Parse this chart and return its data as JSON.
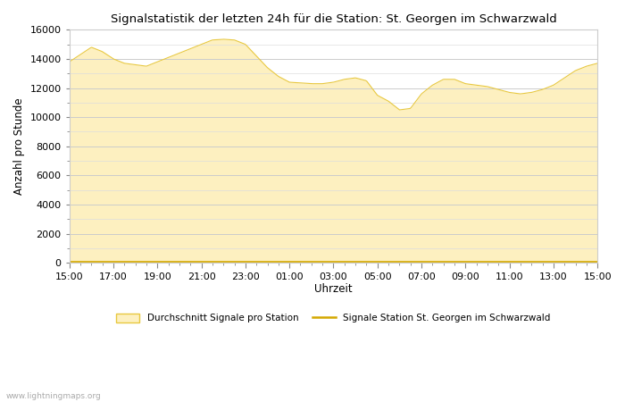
{
  "title": "Signalstatistik der letzten 24h für die Station: St. Georgen im Schwarzwald",
  "xlabel": "Uhrzeit",
  "ylabel": "Anzahl pro Stunde",
  "xtick_labels": [
    "15:00",
    "17:00",
    "19:00",
    "21:00",
    "23:00",
    "01:00",
    "03:00",
    "05:00",
    "07:00",
    "09:00",
    "11:00",
    "13:00",
    "15:00"
  ],
  "xtick_positions": [
    0,
    2,
    4,
    6,
    8,
    10,
    12,
    14,
    16,
    18,
    20,
    22,
    24
  ],
  "ylim": [
    0,
    16000
  ],
  "ytick_positions": [
    0,
    2000,
    4000,
    6000,
    8000,
    10000,
    12000,
    14000,
    16000
  ],
  "background_color": "#ffffff",
  "plot_bg_color": "#ffffff",
  "fill_color": "#fdf0c0",
  "line_color": "#e8c840",
  "station_line_color": "#d4a800",
  "watermark": "www.lightningmaps.org",
  "legend_avg": "Durchschnitt Signale pro Station",
  "legend_station": "Signale Station St. Georgen im Schwarzwald",
  "control_x": [
    0,
    0.5,
    1.0,
    1.5,
    2.0,
    2.5,
    3.0,
    3.5,
    4.0,
    4.5,
    5.0,
    5.5,
    6.0,
    6.5,
    7.0,
    7.5,
    8.0,
    8.5,
    9.0,
    9.5,
    10.0,
    10.5,
    11.0,
    11.5,
    12.0,
    12.5,
    13.0,
    13.5,
    14.0,
    14.5,
    15.0,
    15.5,
    16.0,
    16.5,
    17.0,
    17.5,
    18.0,
    18.5,
    19.0,
    19.5,
    20.0,
    20.5,
    21.0,
    21.5,
    22.0,
    22.5,
    23.0,
    23.5,
    24.0
  ],
  "control_y": [
    13800,
    14300,
    14800,
    14500,
    14000,
    13700,
    13600,
    13500,
    13800,
    14100,
    14400,
    14700,
    15000,
    15300,
    15350,
    15300,
    15000,
    14200,
    13400,
    12800,
    12400,
    12350,
    12300,
    12300,
    12400,
    12600,
    12700,
    12500,
    11500,
    11100,
    10500,
    10600,
    11600,
    12200,
    12600,
    12600,
    12300,
    12200,
    12100,
    11900,
    11700,
    11600,
    11700,
    11900,
    12200,
    12700,
    13200,
    13500,
    13700
  ]
}
